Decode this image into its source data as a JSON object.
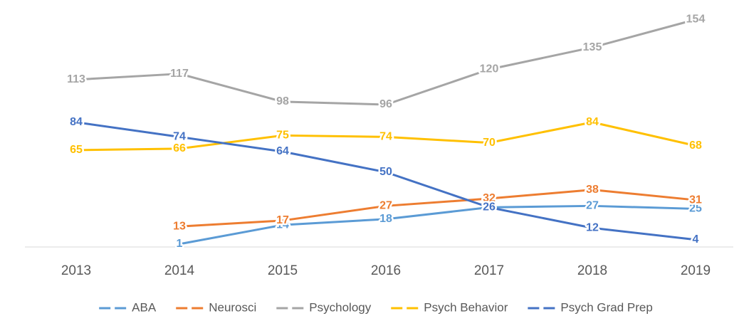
{
  "chart_data": {
    "type": "line",
    "categories": [
      "2013",
      "2014",
      "2015",
      "2016",
      "2017",
      "2018",
      "2019"
    ],
    "series": [
      {
        "name": "ABA",
        "color": "#5b9bd5",
        "values": [
          null,
          1,
          14,
          18,
          26,
          27,
          25
        ]
      },
      {
        "name": "Neurosci",
        "color": "#ed7d31",
        "values": [
          null,
          13,
          17,
          27,
          32,
          38,
          31
        ]
      },
      {
        "name": "Psychology",
        "color": "#a5a5a5",
        "values": [
          113,
          117,
          98,
          96,
          120,
          135,
          154
        ]
      },
      {
        "name": "Psych Behavior",
        "color": "#ffc000",
        "values": [
          65,
          66,
          75,
          74,
          70,
          84,
          68
        ]
      },
      {
        "name": "Psych Grad Prep",
        "color": "#4472c4",
        "values": [
          84,
          74,
          64,
          50,
          26,
          12,
          4
        ]
      }
    ],
    "ylim": [
      0,
      160
    ],
    "legend": "bottom"
  }
}
